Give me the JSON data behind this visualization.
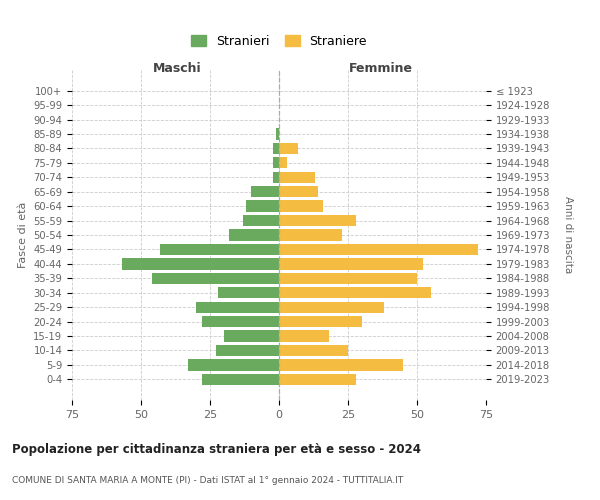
{
  "age_groups": [
    "0-4",
    "5-9",
    "10-14",
    "15-19",
    "20-24",
    "25-29",
    "30-34",
    "35-39",
    "40-44",
    "45-49",
    "50-54",
    "55-59",
    "60-64",
    "65-69",
    "70-74",
    "75-79",
    "80-84",
    "85-89",
    "90-94",
    "95-99",
    "100+"
  ],
  "birth_years": [
    "2019-2023",
    "2014-2018",
    "2009-2013",
    "2004-2008",
    "1999-2003",
    "1994-1998",
    "1989-1993",
    "1984-1988",
    "1979-1983",
    "1974-1978",
    "1969-1973",
    "1964-1968",
    "1959-1963",
    "1954-1958",
    "1949-1953",
    "1944-1948",
    "1939-1943",
    "1934-1938",
    "1929-1933",
    "1924-1928",
    "≤ 1923"
  ],
  "maschi": [
    28,
    33,
    23,
    20,
    28,
    30,
    22,
    46,
    57,
    43,
    18,
    13,
    12,
    10,
    2,
    2,
    2,
    1,
    0,
    0,
    0
  ],
  "femmine": [
    28,
    45,
    25,
    18,
    30,
    38,
    55,
    50,
    52,
    72,
    23,
    28,
    16,
    14,
    13,
    3,
    7,
    0,
    0,
    0,
    0
  ],
  "maschi_color": "#6aaa5f",
  "femmine_color": "#f5bc42",
  "grid_color": "#cccccc",
  "center_line_color": "#aaaaaa",
  "title": "Popolazione per cittadinanza straniera per età e sesso - 2024",
  "subtitle": "COMUNE DI SANTA MARIA A MONTE (PI) - Dati ISTAT al 1° gennaio 2024 - TUTTITALIA.IT",
  "left_header": "Maschi",
  "right_header": "Femmine",
  "ylabel": "Fasce di età",
  "right_ylabel": "Anni di nascita",
  "legend_maschi": "Stranieri",
  "legend_femmine": "Straniere",
  "xlim": 75
}
